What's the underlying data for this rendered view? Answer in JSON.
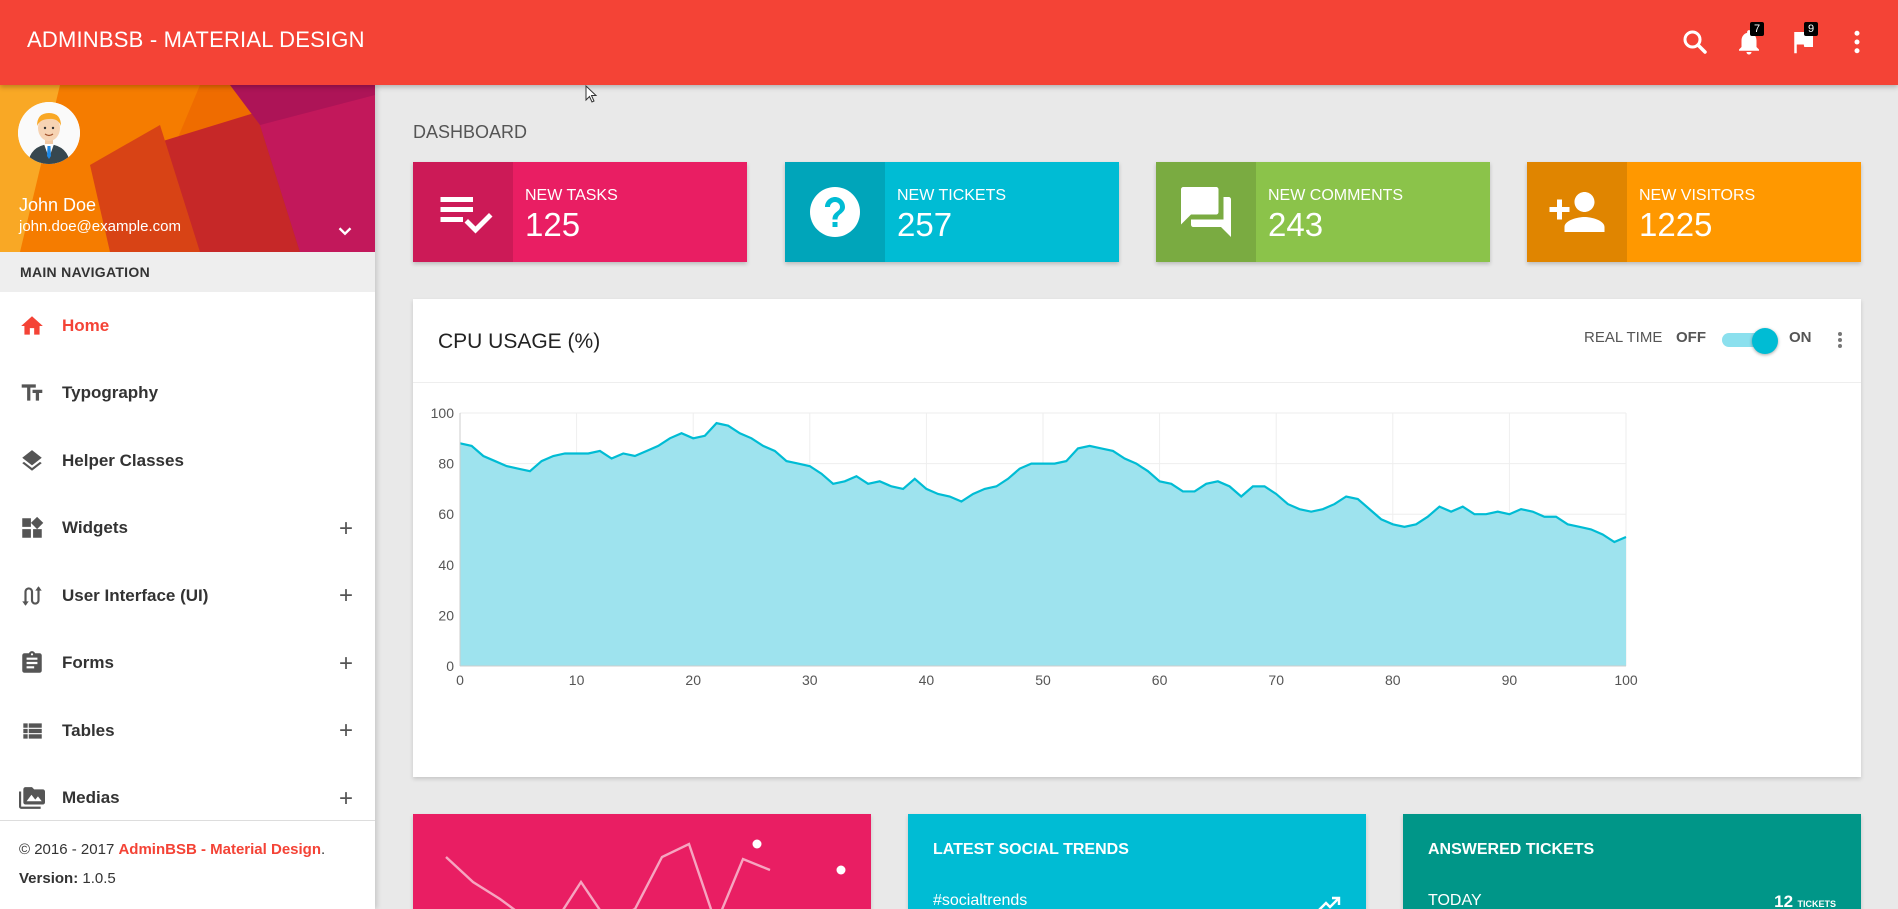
{
  "app": {
    "brand": "ADMINBSB - MATERIAL DESIGN"
  },
  "topbar": {
    "icons": [
      {
        "name": "search-icon"
      },
      {
        "name": "bell-icon",
        "badge": "7"
      },
      {
        "name": "flag-icon",
        "badge": "9"
      },
      {
        "name": "more-vert-icon"
      }
    ]
  },
  "user": {
    "name": "John Doe",
    "email": "john.doe@example.com"
  },
  "sidebar": {
    "header": "MAIN NAVIGATION",
    "items": [
      {
        "label": "Home",
        "icon": "home-icon",
        "active": true,
        "expandable": false
      },
      {
        "label": "Typography",
        "icon": "text-fields-icon",
        "active": false,
        "expandable": false
      },
      {
        "label": "Helper Classes",
        "icon": "layers-icon",
        "active": false,
        "expandable": false
      },
      {
        "label": "Widgets",
        "icon": "widgets-icon",
        "active": false,
        "expandable": true
      },
      {
        "label": "User Interface (UI)",
        "icon": "swap-calls-icon",
        "active": false,
        "expandable": true
      },
      {
        "label": "Forms",
        "icon": "assignment-icon",
        "active": false,
        "expandable": true
      },
      {
        "label": "Tables",
        "icon": "view-list-icon",
        "active": false,
        "expandable": true
      },
      {
        "label": "Medias",
        "icon": "perm-media-icon",
        "active": false,
        "expandable": true
      }
    ],
    "plus": "+",
    "footer": {
      "copyright_prefix": "© 2016 - 2017 ",
      "copyright_link": "AdminBSB - Material Design",
      "copyright_suffix": ".",
      "version_label": "Version:",
      "version_value": " 1.0.5"
    }
  },
  "page": {
    "title": "DASHBOARD"
  },
  "info_boxes": [
    {
      "label": "NEW TASKS",
      "value": "125",
      "color": "#e91e63",
      "icon": "playlist-check-icon"
    },
    {
      "label": "NEW TICKETS",
      "value": "257",
      "color": "#00bcd4",
      "icon": "help-icon"
    },
    {
      "label": "NEW COMMENTS",
      "value": "243",
      "color": "#8bc34a",
      "icon": "forum-icon"
    },
    {
      "label": "NEW VISITORS",
      "value": "1225",
      "color": "#ff9800",
      "icon": "person-add-icon"
    }
  ],
  "cpu_card": {
    "title": "CPU USAGE (%)",
    "realtime_label": "REAL TIME",
    "off_label": "OFF",
    "on_label": "ON",
    "realtime_on": true
  },
  "chart_data": {
    "type": "area",
    "title": "CPU USAGE (%)",
    "xlim": [
      0,
      100
    ],
    "ylim": [
      0,
      100
    ],
    "xticks": [
      0,
      10,
      20,
      30,
      40,
      50,
      60,
      70,
      80,
      90,
      100
    ],
    "yticks": [
      0,
      20,
      40,
      60,
      80,
      100
    ],
    "grid": true,
    "color": "#00bcd4",
    "fill": "#9ee3ee",
    "x": [
      0,
      1,
      2,
      3,
      4,
      5,
      6,
      7,
      8,
      9,
      10,
      11,
      12,
      13,
      14,
      15,
      16,
      17,
      18,
      19,
      20,
      21,
      22,
      23,
      24,
      25,
      26,
      27,
      28,
      29,
      30,
      31,
      32,
      33,
      34,
      35,
      36,
      37,
      38,
      39,
      40,
      41,
      42,
      43,
      44,
      45,
      46,
      47,
      48,
      49,
      50,
      51,
      52,
      53,
      54,
      55,
      56,
      57,
      58,
      59,
      60,
      61,
      62,
      63,
      64,
      65,
      66,
      67,
      68,
      69,
      70,
      71,
      72,
      73,
      74,
      75,
      76,
      77,
      78,
      79,
      80,
      81,
      82,
      83,
      84,
      85,
      86,
      87,
      88,
      89,
      90,
      91,
      92,
      93,
      94,
      95,
      96,
      97,
      98,
      99,
      100
    ],
    "y": [
      88,
      87,
      83,
      81,
      79,
      78,
      77,
      81,
      83,
      84,
      84,
      84,
      85,
      82,
      84,
      83,
      85,
      87,
      90,
      92,
      90,
      91,
      96,
      95,
      92,
      90,
      87,
      85,
      81,
      80,
      79,
      76,
      72,
      73,
      75,
      72,
      73,
      71,
      70,
      74,
      70,
      68,
      67,
      65,
      68,
      70,
      71,
      74,
      78,
      80,
      80,
      80,
      81,
      86,
      87,
      86,
      85,
      82,
      80,
      77,
      73,
      72,
      69,
      69,
      72,
      73,
      71,
      67,
      71,
      71,
      68,
      64,
      62,
      61,
      62,
      64,
      67,
      66,
      62,
      58,
      56,
      55,
      56,
      59,
      63,
      61,
      63,
      60,
      60,
      61,
      60,
      62,
      61,
      59,
      59,
      56,
      55,
      54,
      52,
      49,
      51
    ]
  },
  "bottom_cards": [
    {
      "title": "",
      "color": "#e91e63",
      "row_label": "",
      "row_value": "",
      "row_unit": ""
    },
    {
      "title": "LATEST SOCIAL TRENDS",
      "color": "#00bcd4",
      "row_label": "#socialtrends",
      "row_value": "",
      "row_unit": ""
    },
    {
      "title": "ANSWERED TICKETS",
      "color": "#009688",
      "row_label": "TODAY",
      "row_value": "12",
      "row_unit": "TICKETS"
    }
  ]
}
